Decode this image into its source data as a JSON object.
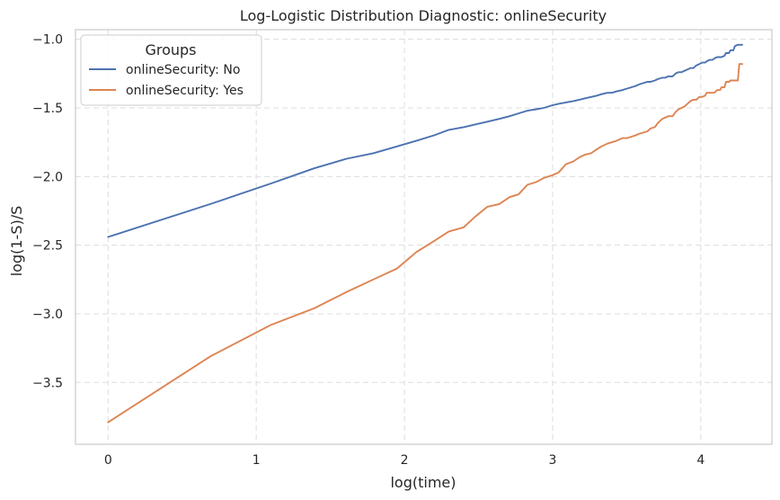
{
  "chart_data": {
    "type": "line",
    "title": "Log-Logistic Distribution Diagnostic: onlineSecurity",
    "xlabel": "log(time)",
    "ylabel": "log(1-S)/S",
    "xlim": [
      -0.22,
      4.48
    ],
    "ylim": [
      -3.95,
      -0.93
    ],
    "xticks": [
      0,
      1,
      2,
      3,
      4
    ],
    "xtick_labels": [
      "0",
      "1",
      "2",
      "3",
      "4"
    ],
    "yticks": [
      -3.5,
      -3.0,
      -2.5,
      -2.0,
      -1.5,
      -1.0
    ],
    "ytick_labels": [
      "−3.5",
      "−3.0",
      "−2.5",
      "−2.0",
      "−1.5",
      "−1.0"
    ],
    "grid": true,
    "legend": {
      "title": "Groups",
      "placement": "top-left"
    },
    "series": [
      {
        "name": "onlineSecurity: No",
        "color": "#4c72b0",
        "x": [
          0,
          0.69,
          1.1,
          1.39,
          1.61,
          1.79,
          1.95,
          2.08,
          2.2,
          2.3,
          2.4,
          2.48,
          2.56,
          2.64,
          2.71,
          2.77,
          2.83,
          2.89,
          2.94,
          3.0,
          3.04,
          3.09,
          3.14,
          3.18,
          3.22,
          3.26,
          3.3,
          3.33,
          3.37,
          3.4,
          3.43,
          3.47,
          3.5,
          3.53,
          3.56,
          3.58,
          3.61,
          3.64,
          3.66,
          3.69,
          3.71,
          3.74,
          3.76,
          3.78,
          3.81,
          3.83,
          3.85,
          3.87,
          3.89,
          3.91,
          3.93,
          3.95,
          3.97,
          3.99,
          4.01,
          4.03,
          4.04,
          4.06,
          4.08,
          4.09,
          4.11,
          4.13,
          4.14,
          4.16,
          4.17,
          4.19,
          4.2,
          4.22,
          4.23,
          4.25,
          4.26,
          4.28
        ],
        "y": [
          -2.44,
          -2.2,
          -2.05,
          -1.94,
          -1.87,
          -1.83,
          -1.78,
          -1.74,
          -1.7,
          -1.66,
          -1.64,
          -1.62,
          -1.6,
          -1.58,
          -1.56,
          -1.54,
          -1.52,
          -1.51,
          -1.5,
          -1.48,
          -1.47,
          -1.46,
          -1.45,
          -1.44,
          -1.43,
          -1.42,
          -1.41,
          -1.4,
          -1.39,
          -1.39,
          -1.38,
          -1.37,
          -1.36,
          -1.35,
          -1.34,
          -1.33,
          -1.32,
          -1.31,
          -1.31,
          -1.3,
          -1.29,
          -1.28,
          -1.28,
          -1.27,
          -1.27,
          -1.25,
          -1.24,
          -1.24,
          -1.23,
          -1.22,
          -1.21,
          -1.21,
          -1.19,
          -1.18,
          -1.17,
          -1.17,
          -1.16,
          -1.15,
          -1.15,
          -1.14,
          -1.13,
          -1.13,
          -1.13,
          -1.12,
          -1.1,
          -1.1,
          -1.08,
          -1.08,
          -1.05,
          -1.04,
          -1.04,
          -1.04
        ]
      },
      {
        "name": "onlineSecurity: Yes",
        "color": "#dd8452",
        "x": [
          0,
          0.69,
          1.1,
          1.39,
          1.61,
          1.79,
          1.95,
          2.08,
          2.2,
          2.3,
          2.4,
          2.48,
          2.56,
          2.64,
          2.71,
          2.77,
          2.83,
          2.89,
          2.94,
          3.0,
          3.04,
          3.09,
          3.14,
          3.18,
          3.22,
          3.26,
          3.3,
          3.33,
          3.37,
          3.4,
          3.43,
          3.47,
          3.5,
          3.53,
          3.56,
          3.58,
          3.61,
          3.64,
          3.66,
          3.69,
          3.71,
          3.74,
          3.76,
          3.78,
          3.81,
          3.83,
          3.85,
          3.87,
          3.89,
          3.91,
          3.93,
          3.95,
          3.97,
          3.99,
          4.01,
          4.03,
          4.04,
          4.06,
          4.08,
          4.09,
          4.11,
          4.13,
          4.14,
          4.16,
          4.17,
          4.19,
          4.2,
          4.22,
          4.23,
          4.25,
          4.26,
          4.28
        ],
        "y": [
          -3.79,
          -3.31,
          -3.08,
          -2.96,
          -2.84,
          -2.75,
          -2.67,
          -2.55,
          -2.47,
          -2.4,
          -2.37,
          -2.29,
          -2.22,
          -2.2,
          -2.15,
          -2.13,
          -2.06,
          -2.04,
          -2.01,
          -1.99,
          -1.97,
          -1.91,
          -1.89,
          -1.86,
          -1.84,
          -1.83,
          -1.8,
          -1.78,
          -1.76,
          -1.75,
          -1.74,
          -1.72,
          -1.72,
          -1.71,
          -1.7,
          -1.69,
          -1.68,
          -1.67,
          -1.65,
          -1.64,
          -1.61,
          -1.58,
          -1.57,
          -1.56,
          -1.56,
          -1.53,
          -1.51,
          -1.5,
          -1.49,
          -1.47,
          -1.45,
          -1.44,
          -1.44,
          -1.42,
          -1.42,
          -1.41,
          -1.39,
          -1.39,
          -1.39,
          -1.39,
          -1.37,
          -1.37,
          -1.35,
          -1.35,
          -1.31,
          -1.31,
          -1.3,
          -1.3,
          -1.3,
          -1.3,
          -1.18,
          -1.18
        ]
      }
    ]
  }
}
